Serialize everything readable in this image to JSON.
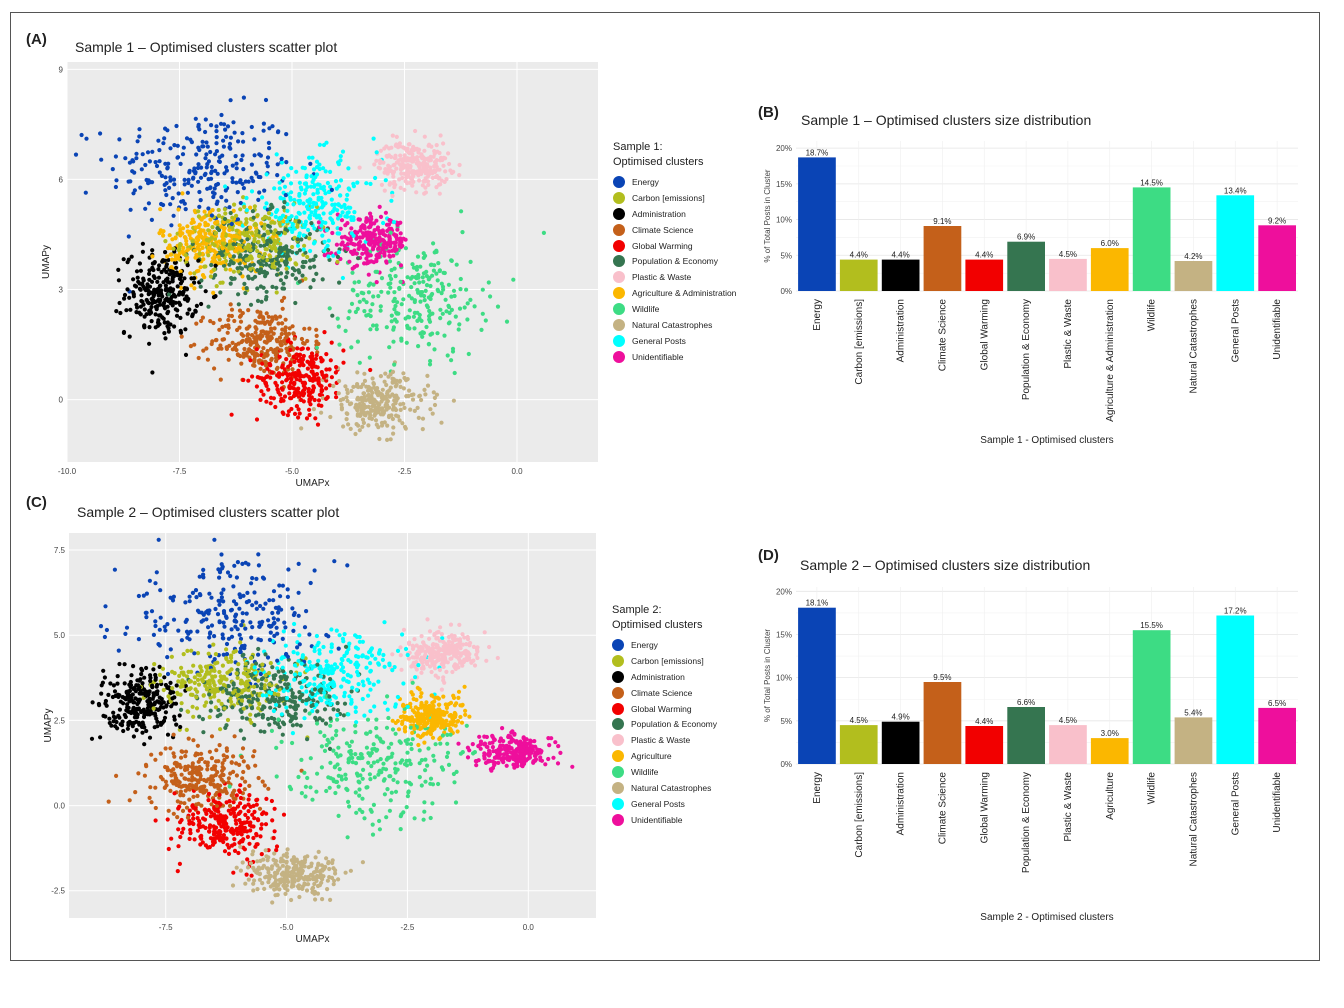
{
  "panels": {
    "A": {
      "letter": "(A)",
      "title": "Sample 1 – Optimised clusters scatter plot"
    },
    "B": {
      "letter": "(B)",
      "title": "Sample 1 – Optimised clusters size distribution"
    },
    "C": {
      "letter": "(C)",
      "title": "Sample 2 – Optimised clusters scatter plot"
    },
    "D": {
      "letter": "(D)",
      "title": "Sample 2 – Optimised clusters size distribution"
    }
  },
  "legend1": {
    "title_line1": "Sample 1:",
    "title_line2": "Optimised clusters",
    "items": [
      {
        "label": "Energy",
        "color": "#0a44b5"
      },
      {
        "label": "Carbon [emissions]",
        "color": "#b2be1e"
      },
      {
        "label": "Administration",
        "color": "#000000"
      },
      {
        "label": "Climate Science",
        "color": "#c4601a"
      },
      {
        "label": "Global Warming",
        "color": "#f20000"
      },
      {
        "label": "Population & Economy",
        "color": "#357550"
      },
      {
        "label": "Plastic & Waste",
        "color": "#f9c0cb"
      },
      {
        "label": "Agriculture & Administration",
        "color": "#fbb700"
      },
      {
        "label": "Wildlife",
        "color": "#3ddc84"
      },
      {
        "label": "Natural Catastrophes",
        "color": "#c4b283"
      },
      {
        "label": "General Posts",
        "color": "#00ffff"
      },
      {
        "label": "Unidentifiable",
        "color": "#ee0f9c"
      }
    ]
  },
  "legend2": {
    "title_line1": "Sample 2:",
    "title_line2": "Optimised clusters",
    "items": [
      {
        "label": "Energy",
        "color": "#0a44b5"
      },
      {
        "label": "Carbon [emissions]",
        "color": "#b2be1e"
      },
      {
        "label": "Administration",
        "color": "#000000"
      },
      {
        "label": "Climate Science",
        "color": "#c4601a"
      },
      {
        "label": "Global Warming",
        "color": "#f20000"
      },
      {
        "label": "Population & Economy",
        "color": "#357550"
      },
      {
        "label": "Plastic & Waste",
        "color": "#f9c0cb"
      },
      {
        "label": "Agriculture",
        "color": "#fbb700"
      },
      {
        "label": "Wildlife",
        "color": "#3ddc84"
      },
      {
        "label": "Natural Catastrophes",
        "color": "#c4b283"
      },
      {
        "label": "General Posts",
        "color": "#00ffff"
      },
      {
        "label": "Unidentifiable",
        "color": "#ee0f9c"
      }
    ]
  },
  "chart_data": [
    {
      "id": "A",
      "type": "scatter",
      "xlabel": "UMAPx",
      "ylabel": "UMAPy",
      "xlim": [
        -10.0,
        1.8
      ],
      "ylim": [
        -1.7,
        9.2
      ],
      "xticks": [
        -10.0,
        -7.5,
        -5.0,
        -2.5,
        0.0
      ],
      "xtick_labels": [
        "-10.0",
        "-7.5",
        "-5.0",
        "-2.5",
        "0.0"
      ],
      "yticks": [
        0,
        3,
        6,
        9
      ],
      "ytick_labels": [
        "0",
        "3",
        "6",
        "9"
      ],
      "grid": true,
      "clusters": [
        {
          "label": "Energy",
          "center": [
            -7.0,
            6.3
          ],
          "spread": [
            1.3,
            1.0
          ]
        },
        {
          "label": "Carbon [emissions]",
          "center": [
            -6.0,
            4.3
          ],
          "spread": [
            0.9,
            0.6
          ]
        },
        {
          "label": "Administration",
          "center": [
            -7.9,
            2.9
          ],
          "spread": [
            0.5,
            0.7
          ]
        },
        {
          "label": "Climate Science",
          "center": [
            -5.7,
            1.6
          ],
          "spread": [
            0.7,
            0.6
          ]
        },
        {
          "label": "Global Warming",
          "center": [
            -4.8,
            0.6
          ],
          "spread": [
            0.6,
            0.6
          ]
        },
        {
          "label": "Population & Economy",
          "center": [
            -5.6,
            3.9
          ],
          "spread": [
            0.9,
            0.7
          ]
        },
        {
          "label": "Plastic & Waste",
          "center": [
            -2.3,
            6.4
          ],
          "spread": [
            0.5,
            0.4
          ]
        },
        {
          "label": "Agriculture & Administration",
          "center": [
            -6.8,
            4.3
          ],
          "spread": [
            0.7,
            0.6
          ]
        },
        {
          "label": "Wildlife",
          "center": [
            -2.3,
            2.8
          ],
          "spread": [
            1.0,
            1.0
          ]
        },
        {
          "label": "Natural Catastrophes",
          "center": [
            -3.1,
            -0.1
          ],
          "spread": [
            0.7,
            0.5
          ]
        },
        {
          "label": "General Posts",
          "center": [
            -4.5,
            5.3
          ],
          "spread": [
            0.9,
            0.8
          ]
        },
        {
          "label": "Unidentifiable",
          "center": [
            -3.2,
            4.3
          ],
          "spread": [
            0.5,
            0.4
          ]
        }
      ]
    },
    {
      "id": "B",
      "type": "bar",
      "xlabel": "Sample 1 - Optimised clusters",
      "ylabel": "% of Total Posts in Cluster",
      "ylim": [
        0,
        21
      ],
      "yticks": [
        0,
        5,
        10,
        15,
        20
      ],
      "ytick_labels": [
        "0%",
        "5%",
        "10%",
        "15%",
        "20%"
      ],
      "grid": true,
      "categories": [
        "Energy",
        "Carbon [emissions]",
        "Administration",
        "Climate Science",
        "Global Warming",
        "Population & Economy",
        "Plastic & Waste",
        "Agriculture & Administration",
        "Wildlife",
        "Natural Catastrophes",
        "General Posts",
        "Unidentifiable"
      ],
      "values": [
        18.7,
        4.4,
        4.4,
        9.1,
        4.4,
        6.9,
        4.5,
        6.0,
        14.5,
        4.2,
        13.4,
        9.2
      ],
      "value_labels": [
        "18.7%",
        "4.4%",
        "4.4%",
        "9.1%",
        "4.4%",
        "6.9%",
        "4.5%",
        "6.0%",
        "14.5%",
        "4.2%",
        "13.4%",
        "9.2%"
      ]
    },
    {
      "id": "C",
      "type": "scatter",
      "xlabel": "UMAPx",
      "ylabel": "UMAPy",
      "xlim": [
        -9.5,
        1.4
      ],
      "ylim": [
        -3.3,
        8.0
      ],
      "xticks": [
        -7.5,
        -5.0,
        -2.5,
        0.0
      ],
      "xtick_labels": [
        "-7.5",
        "-5.0",
        "-2.5",
        "0.0"
      ],
      "yticks": [
        -2.5,
        0.0,
        2.5,
        5.0,
        7.5
      ],
      "ytick_labels": [
        "-2.5",
        "0.0",
        "2.5",
        "5.0",
        "7.5"
      ],
      "grid": true,
      "clusters": [
        {
          "label": "Energy",
          "center": [
            -6.2,
            5.5
          ],
          "spread": [
            1.4,
            1.0
          ]
        },
        {
          "label": "Carbon [emissions]",
          "center": [
            -6.3,
            3.6
          ],
          "spread": [
            0.8,
            0.6
          ]
        },
        {
          "label": "Administration",
          "center": [
            -8.0,
            3.0
          ],
          "spread": [
            0.5,
            0.6
          ]
        },
        {
          "label": "Climate Science",
          "center": [
            -6.8,
            0.8
          ],
          "spread": [
            0.7,
            0.6
          ]
        },
        {
          "label": "Global Warming",
          "center": [
            -6.3,
            -0.5
          ],
          "spread": [
            0.6,
            0.6
          ]
        },
        {
          "label": "Population & Economy",
          "center": [
            -5.3,
            3.2
          ],
          "spread": [
            0.9,
            0.7
          ]
        },
        {
          "label": "Plastic & Waste",
          "center": [
            -1.8,
            4.5
          ],
          "spread": [
            0.5,
            0.4
          ]
        },
        {
          "label": "Agriculture",
          "center": [
            -2.0,
            2.6
          ],
          "spread": [
            0.4,
            0.4
          ]
        },
        {
          "label": "Wildlife",
          "center": [
            -3.2,
            1.2
          ],
          "spread": [
            1.1,
            1.0
          ]
        },
        {
          "label": "Natural Catastrophes",
          "center": [
            -4.9,
            -2.0
          ],
          "spread": [
            0.6,
            0.4
          ]
        },
        {
          "label": "General Posts",
          "center": [
            -4.0,
            3.9
          ],
          "spread": [
            1.0,
            0.8
          ]
        },
        {
          "label": "Unidentifiable",
          "center": [
            -0.3,
            1.6
          ],
          "spread": [
            0.5,
            0.3
          ]
        }
      ]
    },
    {
      "id": "D",
      "type": "bar",
      "xlabel": "Sample 2 - Optimised clusters",
      "ylabel": "% of Total Posts in Cluster",
      "ylim": [
        0,
        20.5
      ],
      "yticks": [
        0,
        5,
        10,
        15,
        20
      ],
      "ytick_labels": [
        "0%",
        "5%",
        "10%",
        "15%",
        "20%"
      ],
      "grid": true,
      "categories": [
        "Energy",
        "Carbon [emissions]",
        "Administration",
        "Climate Science",
        "Global Warming",
        "Population & Economy",
        "Plastic & Waste",
        "Agriculture",
        "Wildlife",
        "Natural Catastrophes",
        "General Posts",
        "Unidentifiable"
      ],
      "values": [
        18.1,
        4.5,
        4.9,
        9.5,
        4.4,
        6.6,
        4.5,
        3.0,
        15.5,
        5.4,
        17.2,
        6.5
      ],
      "value_labels": [
        "18.1%",
        "4.5%",
        "4.9%",
        "9.5%",
        "4.4%",
        "6.6%",
        "4.5%",
        "3.0%",
        "15.5%",
        "5.4%",
        "17.2%",
        "6.5%"
      ]
    }
  ]
}
